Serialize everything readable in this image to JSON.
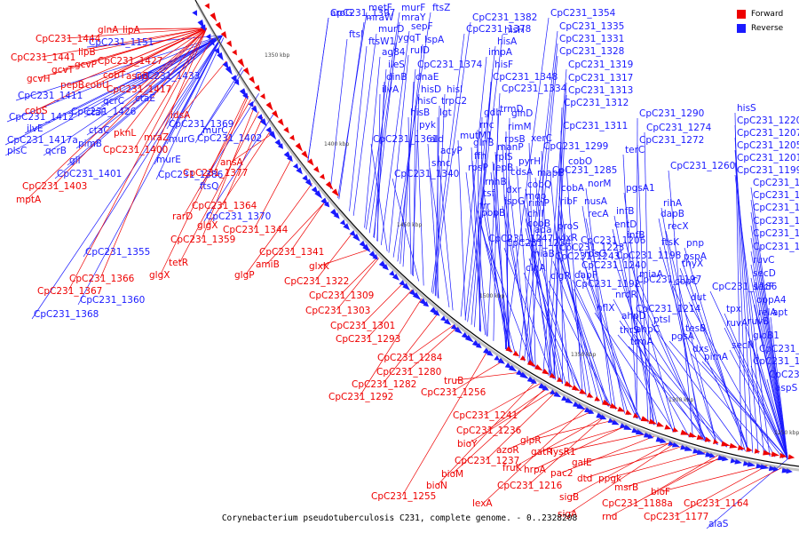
{
  "legend": {
    "forward": {
      "label": "Forward",
      "color": "#ee0000"
    },
    "reverse": {
      "label": "Reverse",
      "color": "#1a1aff"
    }
  },
  "caption": "Corynebacterium pseudotuberculosis C231, complete genome. - 0..2328208",
  "ticks": [
    "1350 kbp",
    "1400 kbp",
    "1450 kbp",
    "1500 kbp",
    "1350 kbp",
    "1300 kbp",
    "1250 kbp"
  ],
  "reverse_labels": [
    "aroG",
    "metF",
    "murF",
    "ftsZ",
    "mraW",
    "mraY",
    "ftsI",
    "murD",
    "sepF",
    "CpC231_1382",
    "CpC231_1354",
    "ftsW1",
    "ygqT",
    "CpC231_1378",
    "lspA",
    "CpC231_1335",
    "hisH",
    "CpC231_1331",
    "ag84",
    "rulD",
    "hisA",
    "CpC231_1328",
    "impA",
    "ileS",
    "CpC231_1374",
    "CpC231_1319",
    "dinB",
    "dnaE",
    "hisF",
    "CpC231_1317",
    "ilvA",
    "CpC231_1348",
    "CpC231_1313",
    "hisD",
    "hisI",
    "CpC231_1334",
    "hisC",
    "trpC2",
    "CpC231_1312",
    "hisB",
    "lgt",
    "gdh",
    "trmD",
    "pyk",
    "rnc",
    "glnD",
    "CpC231_1290",
    "ald",
    "mutM1",
    "rimM",
    "CpC231_1311",
    "acyP",
    "rpsB",
    "xerC",
    "CpC231_1274",
    "CpC231_1361",
    "smc",
    "glnB",
    "manP",
    "pyrH",
    "CpC231_1272",
    "ffh",
    "rplS",
    "CpC231_1299",
    "CpC231_1340",
    "rpsP",
    "lepB",
    "cdsA",
    "mapB",
    "cobO",
    "CpC231_1260",
    "rnhB",
    "cobQ",
    "CpC231_1285",
    "terC",
    "tsf",
    "dxr",
    "mqo",
    "cobA",
    "norM",
    "pgsA1",
    "frr",
    "ispG",
    "rimP",
    "ribF",
    "chlI",
    "pbpB",
    "cobB",
    "nusA",
    "rihA",
    "CpC231_1247",
    "ada",
    "proS",
    "infB",
    "recA",
    "dapB",
    "CpC231_1234",
    "vlxR",
    "entD",
    "recX",
    "CpC231_1223",
    "rpsO",
    "ftsK",
    "miaB",
    "CpC231_1243",
    "CpC231_1206",
    "infB",
    "pnp",
    "cinA",
    "CpC231_1240",
    "CpC231_1198",
    "thyX",
    "clgR",
    "dapF",
    "CpC231_1197",
    "pspA",
    "miaA",
    "nrdR",
    "CpC231_1192",
    "hflX",
    "CpC231_1214",
    "copC",
    "ptsI",
    "ahpC",
    "CpC231_1186",
    "ahpD",
    "dut",
    "thrS",
    "trmA",
    "pgsA",
    "dxs",
    "pimA",
    "tesB",
    "secN",
    "hisS",
    "CpC231_1220",
    "CpC231_1207",
    "CpC231_1205",
    "CpC231_1201",
    "CpC231_1199a",
    "CpC231_1187",
    "CpC231_1184",
    "CpC231_1182",
    "CpC231_1180",
    "CpC231_1175",
    "CpC231_1174",
    "ruvC",
    "secD",
    "secF",
    "oppA4",
    "apt",
    "relA",
    "tpx",
    "ruvA",
    "ruvB",
    "gloB1",
    "CpC231_1158a",
    "CpC231_1157",
    "CpC231_1153",
    "aspS",
    "alaS",
    "CpC231_1151",
    "CpC231_1433",
    "qcrC",
    "ctaE",
    "CpC231_1411",
    "CpC231_1426",
    "ctaF",
    "CpC231_1412",
    "ilvE",
    "CpC231_1417a",
    "ctaC",
    "plsC",
    "qcrB",
    "pimB",
    "gll",
    "CpC231_1401",
    "CpC231_1402",
    "murC",
    "murG",
    "murE",
    "CpC231_1386",
    "ftsQ",
    "CpC231_1370",
    "CpC231_1355",
    "CpC231_1360",
    "CpC231_1368",
    "CpC231_1369",
    "CpC231_1397"
  ],
  "forward_labels": [
    "glnA",
    "lipA",
    "CpC231_1444",
    "lipB",
    "CpC231_1441",
    "gcvP",
    "gcvT",
    "CpC231_1427",
    "gcvH",
    "cobT",
    "asnB",
    "pepB",
    "cobU",
    "CpC231_1417",
    "cobS",
    "idsA",
    "pknL",
    "CpC231_1400",
    "mraZ",
    "ansA",
    "CpC231_1377",
    "CpC231_1403",
    "mptA",
    "CpC231_1364",
    "rarD",
    "glgX",
    "CpC231_1344",
    "CpC231_1359",
    "tetR",
    "CpC231_1341",
    "amiB",
    "glgX",
    "glgP",
    "glxK",
    "CpC231_1366",
    "CpC231_1367",
    "CpC231_1322",
    "CpC231_1309",
    "CpC231_1303",
    "CpC231_1301",
    "CpC231_1293",
    "CpC231_1284",
    "CpC231_1280",
    "CpC231_1282",
    "CpC231_1292",
    "truB",
    "CpC231_1256",
    "CpC231_1241",
    "CpC231_1236",
    "bioY",
    "azoR",
    "glpR",
    "gatR",
    "lysR1",
    "CpC231_1237",
    "bioM",
    "fruK",
    "hrpA",
    "pac2",
    "galE",
    "CpC231_1216",
    "bioN",
    "lexA",
    "sigB",
    "dtd",
    "ppgk",
    "sigA",
    "CpC231_1255",
    "msrB",
    "bioF",
    "CpC231_1188a",
    "CpC231_1164",
    "rnd",
    "CpC231_1177"
  ]
}
